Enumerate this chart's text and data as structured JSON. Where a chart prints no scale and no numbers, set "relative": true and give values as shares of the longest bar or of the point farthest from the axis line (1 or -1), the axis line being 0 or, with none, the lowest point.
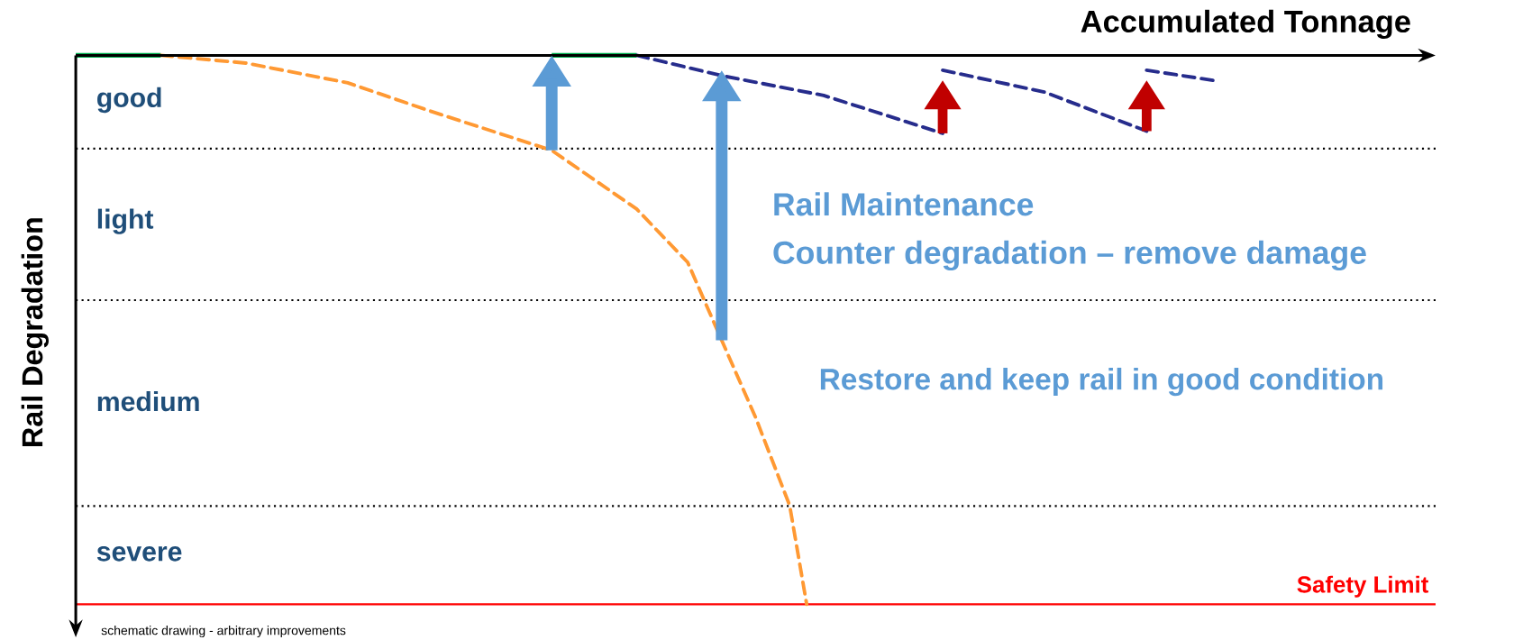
{
  "chart_data": {
    "type": "line",
    "relative": true,
    "xlabel": "Accumulated Tonnage",
    "ylabel": "Rail Degradation",
    "categories": [
      null,
      null,
      null,
      null,
      null,
      null,
      null,
      null,
      null,
      null,
      null,
      null,
      null,
      null,
      null,
      null,
      null,
      null,
      null,
      null,
      null,
      null,
      null,
      null,
      null,
      null,
      null,
      null,
      null,
      null,
      null,
      null,
      null,
      null,
      null,
      null,
      null,
      null,
      null,
      null,
      null,
      null,
      null,
      null,
      null,
      null,
      null,
      null,
      null,
      null,
      null,
      null,
      null,
      null,
      null,
      null,
      null,
      null,
      null,
      null,
      null,
      null,
      null,
      null,
      null,
      null,
      null,
      null,
      null,
      null,
      null,
      null,
      null,
      null,
      null,
      null,
      null,
      null,
      null,
      null,
      null
    ],
    "series": [
      {
        "color": "#00b050",
        "line_style": "solid",
        "values": [
          0,
          null,
          null,
          null,
          null,
          0,
          null,
          null,
          null,
          null,
          null,
          null,
          null,
          null,
          null,
          null,
          null,
          null,
          null,
          null,
          null,
          null,
          null,
          null,
          null,
          null,
          null,
          null,
          null,
          null,
          null,
          null,
          null,
          null,
          null,
          null,
          null,
          null,
          null,
          null,
          null,
          null,
          null,
          null,
          null,
          null,
          null,
          null,
          null,
          null,
          null,
          null,
          null,
          null,
          null,
          null,
          null,
          null,
          null,
          null,
          null,
          null,
          null,
          null,
          null,
          null,
          null,
          null,
          null,
          null,
          null,
          null,
          null,
          null,
          null,
          null,
          null,
          null,
          null,
          null,
          null
        ]
      },
      {
        "color": "#00b050",
        "line_style": "solid",
        "values": [
          null,
          null,
          null,
          null,
          null,
          null,
          null,
          null,
          null,
          null,
          null,
          null,
          null,
          null,
          null,
          null,
          null,
          null,
          null,
          null,
          null,
          null,
          null,
          null,
          null,
          null,
          null,
          null,
          0,
          null,
          null,
          null,
          null,
          0,
          null,
          null,
          null,
          null,
          null,
          null,
          null,
          null,
          null,
          null,
          null,
          null,
          null,
          null,
          null,
          null,
          null,
          null,
          null,
          null,
          null,
          null,
          null,
          null,
          null,
          null,
          null,
          null,
          null,
          null,
          null,
          null,
          null,
          null,
          null,
          null,
          null,
          null,
          null,
          null,
          null,
          null,
          null,
          null,
          null,
          null,
          null
        ]
      },
      {
        "color": "#ff9933",
        "line_style": "dashed",
        "values": [
          null,
          null,
          null,
          null,
          null,
          0,
          null,
          null,
          null,
          null,
          -0.014,
          null,
          null,
          null,
          null,
          null,
          -0.05,
          null,
          null,
          null,
          null,
          -0.103,
          null,
          null,
          null,
          null,
          null,
          null,
          -0.173,
          null,
          null,
          null,
          null,
          -0.28,
          null,
          null,
          -0.377,
          null,
          -0.519,
          null,
          -0.66,
          null,
          -0.82,
          -1,
          null,
          null,
          null,
          null,
          null,
          null,
          null,
          null,
          null,
          null,
          null,
          null,
          null,
          null,
          null,
          null,
          null,
          null,
          null,
          null,
          null,
          null,
          null,
          null,
          null,
          null,
          null,
          null,
          null,
          null,
          null,
          null,
          null,
          null,
          null,
          null,
          null
        ]
      },
      {
        "color": "#262c8c",
        "line_style": "dashed",
        "values": [
          null,
          null,
          null,
          null,
          null,
          null,
          null,
          null,
          null,
          null,
          null,
          null,
          null,
          null,
          null,
          null,
          null,
          null,
          null,
          null,
          null,
          null,
          null,
          null,
          null,
          null,
          null,
          null,
          null,
          null,
          null,
          null,
          null,
          0,
          null,
          null,
          null,
          null,
          -0.037,
          null,
          null,
          null,
          null,
          null,
          -0.073,
          null,
          null,
          null,
          null,
          null,
          null,
          -0.142,
          null,
          null,
          null,
          null,
          null,
          null,
          null,
          null,
          null,
          null,
          null,
          null,
          null,
          null,
          null,
          null,
          null,
          null,
          null,
          null,
          null,
          null,
          null,
          null,
          null,
          null,
          null,
          null,
          null
        ]
      },
      {
        "color": "#262c8c",
        "line_style": "dashed",
        "values": [
          null,
          null,
          null,
          null,
          null,
          null,
          null,
          null,
          null,
          null,
          null,
          null,
          null,
          null,
          null,
          null,
          null,
          null,
          null,
          null,
          null,
          null,
          null,
          null,
          null,
          null,
          null,
          null,
          null,
          null,
          null,
          null,
          null,
          null,
          null,
          null,
          null,
          null,
          null,
          null,
          null,
          null,
          null,
          null,
          null,
          null,
          null,
          null,
          null,
          null,
          null,
          -0.027,
          null,
          null,
          null,
          null,
          null,
          -0.067,
          null,
          null,
          null,
          null,
          null,
          -0.138,
          null,
          null,
          null,
          null,
          null,
          null,
          null,
          null,
          null,
          null,
          null,
          null,
          null,
          null,
          null,
          null,
          null
        ]
      },
      {
        "color": "#262c8c",
        "line_style": "dashed",
        "values": [
          null,
          null,
          null,
          null,
          null,
          null,
          null,
          null,
          null,
          null,
          null,
          null,
          null,
          null,
          null,
          null,
          null,
          null,
          null,
          null,
          null,
          null,
          null,
          null,
          null,
          null,
          null,
          null,
          null,
          null,
          null,
          null,
          null,
          null,
          null,
          null,
          null,
          null,
          null,
          null,
          null,
          null,
          null,
          null,
          null,
          null,
          null,
          null,
          null,
          null,
          null,
          null,
          null,
          null,
          null,
          null,
          null,
          null,
          null,
          null,
          null,
          null,
          null,
          -0.027,
          null,
          null,
          null,
          -0.046,
          null,
          null,
          null,
          null,
          null,
          null,
          null,
          null,
          null,
          null,
          null,
          null,
          null
        ]
      }
    ],
    "ref_lines": [
      {
        "axis": "y",
        "value": -0.17,
        "color": "#000000",
        "line_style": "dotted"
      },
      {
        "axis": "y",
        "value": -0.446,
        "color": "#000000",
        "line_style": "dotted"
      },
      {
        "axis": "y",
        "value": -0.821,
        "color": "#000000",
        "line_style": "dotted"
      },
      {
        "axis": "y",
        "value": -1,
        "label": "Safety Limit",
        "color": "#ff0000",
        "line_style": "solid"
      }
    ],
    "annotations": [
      "good",
      "light",
      "medium",
      "severe",
      "Rail Maintenance",
      "Counter degradation – remove damage",
      "Restore and keep rail in good condition",
      "schematic drawing - arbitrary improvements"
    ],
    "marker": "none"
  }
}
